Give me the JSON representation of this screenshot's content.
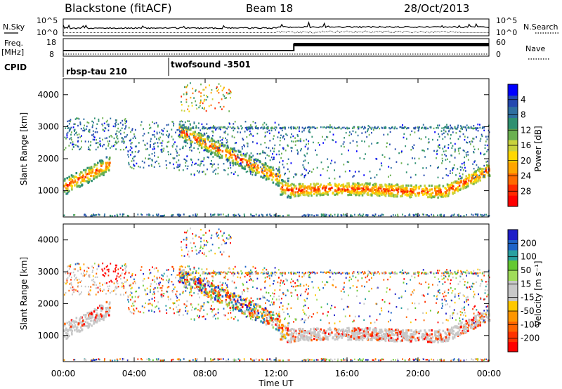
{
  "header": {
    "station": "Blackstone (fitACF)",
    "beam": "Beam 18",
    "date": "28/Oct/2013"
  },
  "noise_panel": {
    "left_label": "N.Sky",
    "right_label": "N.Search",
    "y_ticks": [
      "10^5",
      "10^0"
    ]
  },
  "freq_panel": {
    "left_label_1": "Freq.",
    "left_label_2": "[MHz]",
    "right_label": "Nave",
    "left_ticks": [
      "18",
      "8"
    ],
    "right_ticks": [
      "60",
      "0"
    ]
  },
  "cpid_panel": {
    "label": "CPID",
    "programs": [
      {
        "name": "rbsp-tau 210",
        "start_hour": 0
      },
      {
        "name": "twofsound -3501",
        "start_hour": 6
      }
    ]
  },
  "time_axis": {
    "label": "Time UT",
    "ticks": [
      "00:00",
      "04:00",
      "08:00",
      "12:00",
      "16:00",
      "20:00",
      "00:00"
    ]
  },
  "chart_data": [
    {
      "type": "heatmap",
      "name": "power",
      "ylabel": "Slant Range [km]",
      "y_ticks": [
        "1000",
        "2000",
        "3000",
        "4000"
      ],
      "xlim": [
        0,
        24
      ],
      "ylim": [
        180,
        4500
      ],
      "colorbar": {
        "label": "Power [dB]",
        "ticks": [
          "4",
          "8",
          "12",
          "16",
          "20",
          "24",
          "28"
        ],
        "colors": [
          "#0000ff",
          "#2448b0",
          "#2e6fa0",
          "#2e9070",
          "#6ab050",
          "#c8d23c",
          "#ffd700",
          "#ffa500",
          "#ff6a00",
          "#ff2a00",
          "#ff0000"
        ]
      },
      "echo_bands": [
        {
          "hours": [
            0,
            2.6
          ],
          "range_km": [
            1100,
            1950
          ],
          "power_db": [
            16,
            30
          ]
        },
        {
          "hours": [
            0,
            3.5
          ],
          "range_km": [
            2300,
            3200
          ],
          "power_db": [
            8,
            26
          ]
        },
        {
          "hours": [
            6.5,
            12.2
          ],
          "range_km": [
            1500,
            3000
          ],
          "power_db": [
            10,
            26
          ]
        },
        {
          "hours": [
            12,
            23
          ],
          "range_km": [
            900,
            1400
          ],
          "power_db": [
            20,
            30
          ]
        }
      ]
    },
    {
      "type": "heatmap",
      "name": "velocity",
      "ylabel": "Slant Range [km]",
      "y_ticks": [
        "1000",
        "2000",
        "3000",
        "4000"
      ],
      "xlim": [
        0,
        24
      ],
      "ylim": [
        180,
        4500
      ],
      "colorbar": {
        "label": "Velocity [m s⁻¹]",
        "ticks": [
          "200",
          "100",
          "50",
          "15",
          "-15",
          "-50",
          "-100",
          "-200"
        ],
        "colors": [
          "#1e1ec8",
          "#1e64c8",
          "#28a0a0",
          "#64c832",
          "#a0dc5a",
          "#c8c8c8",
          "#c8c8c8",
          "#ffc800",
          "#ff9600",
          "#ff6400",
          "#ff3200",
          "#ff0000"
        ]
      }
    }
  ]
}
